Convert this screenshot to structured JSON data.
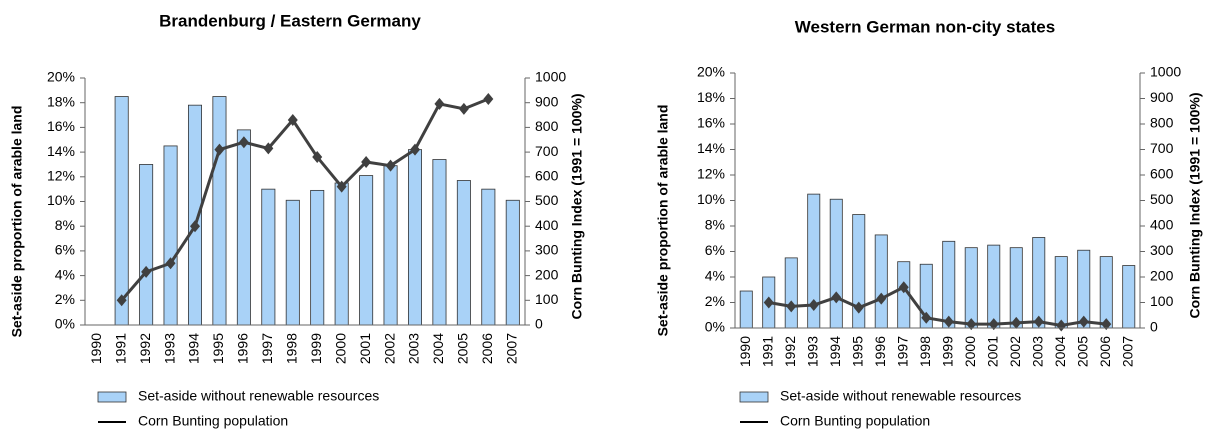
{
  "chart_data": [
    {
      "type": "bar",
      "title": "Brandenburg / Eastern Germany",
      "categories": [
        "1990",
        "1991",
        "1992",
        "1993",
        "1994",
        "1995",
        "1996",
        "1997",
        "1998",
        "1999",
        "2000",
        "2001",
        "2002",
        "2003",
        "2004",
        "2005",
        "2006",
        "2007"
      ],
      "ylabel": "Set-aside proportion of arable land",
      "y2label": "Corn Bunting Index (1991 = 100%)",
      "ylim": [
        0,
        20
      ],
      "yticks": [
        {
          "value": 0,
          "label": "0%"
        },
        {
          "value": 2,
          "label": "2%"
        },
        {
          "value": 4,
          "label": "4%"
        },
        {
          "value": 6,
          "label": "6%"
        },
        {
          "value": 8,
          "label": "8%"
        },
        {
          "value": 10,
          "label": "10%"
        },
        {
          "value": 12,
          "label": "12%"
        },
        {
          "value": 14,
          "label": "14%"
        },
        {
          "value": 16,
          "label": "16%"
        },
        {
          "value": 18,
          "label": "18%"
        },
        {
          "value": 20,
          "label": "20%"
        }
      ],
      "y2lim": [
        0,
        1000
      ],
      "y2ticks": [
        0,
        100,
        200,
        300,
        400,
        500,
        600,
        700,
        800,
        900,
        1000
      ],
      "series": [
        {
          "name": "Set-aside without renewable resources",
          "color": "#a9d2f7",
          "values": [
            null,
            18.5,
            13,
            14.5,
            17.8,
            18.5,
            15.8,
            11,
            10.1,
            10.9,
            11.5,
            12.1,
            12.9,
            14.2,
            13.4,
            11.7,
            11,
            10.1
          ]
        },
        {
          "name": "Corn Bunting population",
          "color": "#404040",
          "axis": "y2",
          "values": [
            null,
            100,
            215,
            250,
            400,
            710,
            740,
            715,
            830,
            680,
            560,
            660,
            645,
            710,
            895,
            875,
            915,
            null
          ]
        }
      ]
    },
    {
      "type": "bar",
      "title": "Western German non-city states",
      "categories": [
        "1990",
        "1991",
        "1992",
        "1993",
        "1994",
        "1995",
        "1996",
        "1997",
        "1998",
        "1999",
        "2000",
        "2001",
        "2002",
        "2003",
        "2004",
        "2005",
        "2006",
        "2007"
      ],
      "ylabel": "Set-aside proportion of arable land",
      "y2label": "Corn Bunting Index (1991 = 100%)",
      "ylim": [
        0,
        20
      ],
      "yticks": [
        {
          "value": 0,
          "label": "0%"
        },
        {
          "value": 2,
          "label": "2%"
        },
        {
          "value": 4,
          "label": "4%"
        },
        {
          "value": 6,
          "label": "6%"
        },
        {
          "value": 8,
          "label": "8%"
        },
        {
          "value": 10,
          "label": "10%"
        },
        {
          "value": 12,
          "label": "12%"
        },
        {
          "value": 14,
          "label": "14%"
        },
        {
          "value": 16,
          "label": "16%"
        },
        {
          "value": 18,
          "label": "18%"
        },
        {
          "value": 20,
          "label": "20%"
        }
      ],
      "y2lim": [
        0,
        1000
      ],
      "y2ticks": [
        0,
        100,
        200,
        300,
        400,
        500,
        600,
        700,
        800,
        900,
        1000
      ],
      "series": [
        {
          "name": "Set-aside without renewable resources",
          "color": "#a9d2f7",
          "values": [
            2.9,
            4.0,
            5.5,
            10.5,
            10.1,
            8.9,
            7.3,
            5.2,
            5.0,
            6.8,
            6.3,
            6.5,
            6.3,
            7.1,
            5.6,
            6.1,
            5.6,
            4.9
          ]
        },
        {
          "name": "Corn Bunting population",
          "color": "#404040",
          "axis": "y2",
          "values": [
            null,
            100,
            85,
            90,
            120,
            80,
            115,
            160,
            40,
            25,
            15,
            15,
            20,
            25,
            10,
            25,
            15,
            null
          ]
        }
      ]
    }
  ]
}
